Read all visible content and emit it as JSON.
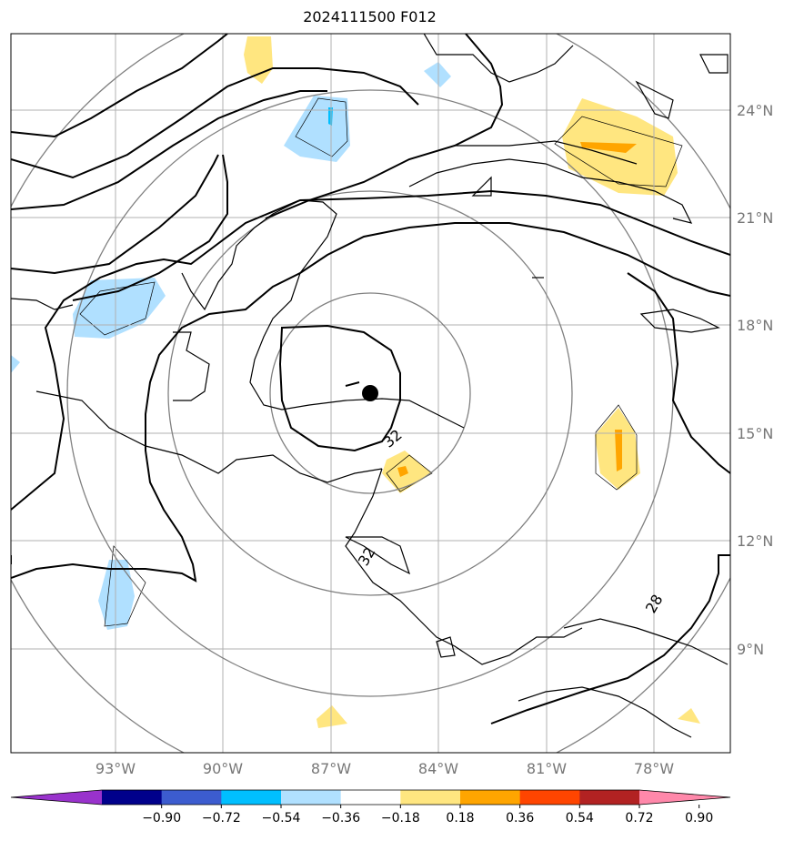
{
  "title": "2024111500 F012",
  "lat_labels": [
    "24°N",
    "21°N",
    "18°N",
    "15°N",
    "12°N",
    "9°N"
  ],
  "lon_labels": [
    "93°W",
    "90°W",
    "87°W",
    "84°W",
    "81°W",
    "78°W"
  ],
  "colorbar": {
    "ticks": [
      "−0.90",
      "−0.72",
      "−0.54",
      "−0.36",
      "−0.18",
      "0.18",
      "0.36",
      "0.54",
      "0.72",
      "0.90"
    ],
    "colors": [
      "#9932cc",
      "#00008b",
      "#3c5ccf",
      "#00bfff",
      "#b0e0ff",
      "#ffffff",
      "#ffe680",
      "#ffa500",
      "#ff4500",
      "#b22222",
      "#ff88aa"
    ]
  },
  "contour_labels": [
    "32",
    "32",
    "28"
  ],
  "fill_colors": {
    "light_blue": "#b0e0ff",
    "cyan": "#00bfff",
    "light_yellow": "#ffe680",
    "orange": "#ffa500"
  },
  "storm_center_marker": "filled-circle"
}
